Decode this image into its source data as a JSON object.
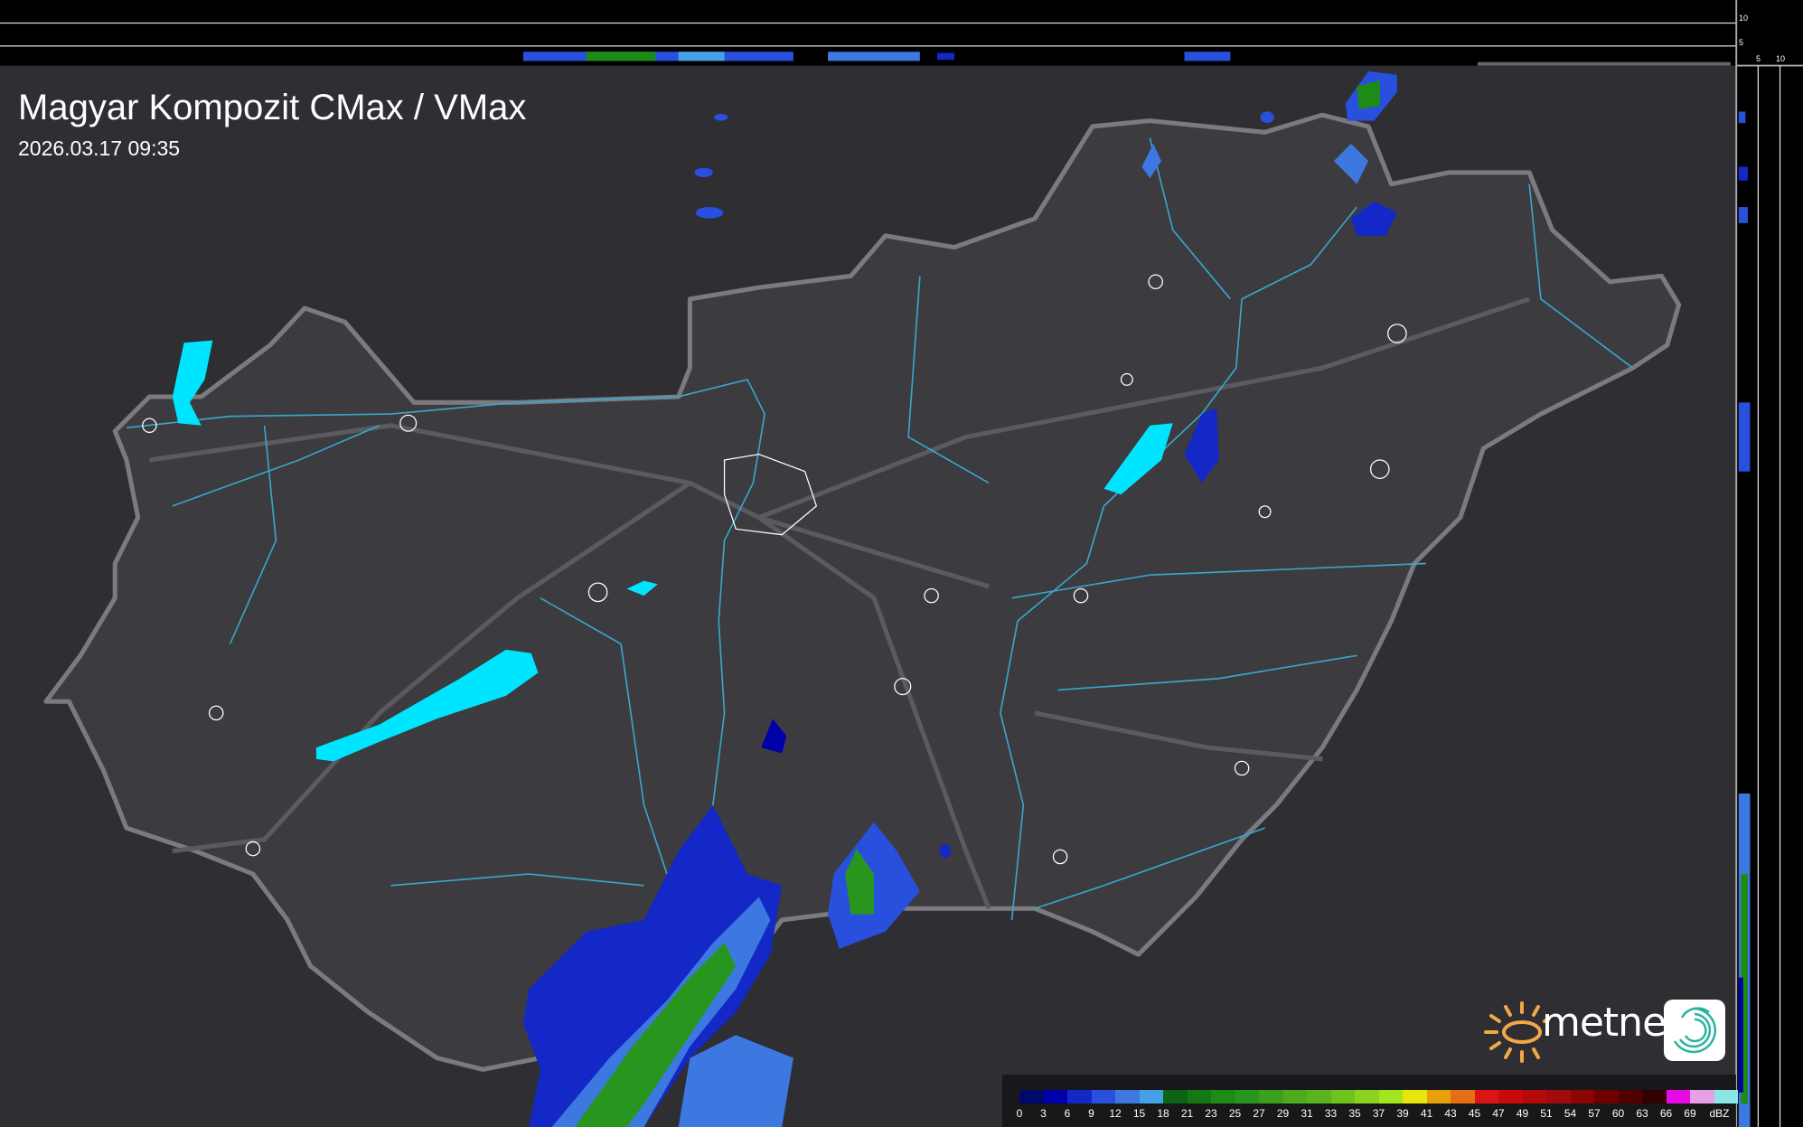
{
  "header": {
    "title": "Magyar Kompozit CMax / VMax",
    "timestamp": "2026.03.17 09:35"
  },
  "side_axis": {
    "right_labels": [
      "10",
      "5"
    ],
    "bottom_labels": [
      "5",
      "10"
    ]
  },
  "legend": {
    "labels": [
      "0",
      "3",
      "6",
      "9",
      "12",
      "15",
      "18",
      "21",
      "23",
      "25",
      "27",
      "29",
      "31",
      "33",
      "35",
      "37",
      "39",
      "41",
      "43",
      "45",
      "47",
      "49",
      "51",
      "54",
      "57",
      "60",
      "63",
      "66",
      "69"
    ],
    "unit": "dBZ",
    "colors": [
      "#00086a",
      "#0000a8",
      "#1428c8",
      "#2850dc",
      "#3c78e0",
      "#46a0e6",
      "#0a6414",
      "#147814",
      "#1e8c14",
      "#28961e",
      "#3ca01e",
      "#50aa1e",
      "#5ab41e",
      "#6ec31e",
      "#8cd21e",
      "#a0e61e",
      "#e6e60a",
      "#e6a00a",
      "#e66e14",
      "#dc1414",
      "#c80a0a",
      "#b40a0a",
      "#a00a0a",
      "#8c0505",
      "#6e0000",
      "#500000",
      "#300000",
      "#e60ae6",
      "#e6a0e6",
      "#8ce6e6"
    ]
  },
  "logo": {
    "brand": "metnet"
  },
  "colors": {
    "background": "#2e2e33",
    "country_fill": "#3b3b40",
    "border": "#7a7a80",
    "river": "#3aa5c8",
    "lake": "#00e5ff"
  }
}
